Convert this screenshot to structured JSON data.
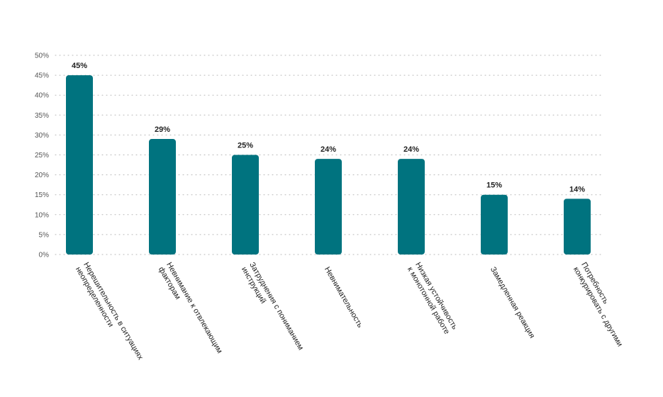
{
  "chart_data": {
    "type": "bar",
    "title": "",
    "xlabel": "",
    "ylabel": "",
    "ylim": [
      0,
      50
    ],
    "yticks": [
      "0%",
      "5%",
      "10%",
      "15%",
      "20%",
      "25%",
      "30%",
      "35%",
      "40%",
      "45%",
      "50%"
    ],
    "ytick_values": [
      0,
      5,
      10,
      15,
      20,
      25,
      30,
      35,
      40,
      45,
      50
    ],
    "grid": true,
    "bar_color": "#00737f",
    "categories": [
      [
        "Нерешительность в ситуациях",
        "неопределенности"
      ],
      [
        "Невнимание к отвлекающим",
        "факторам"
      ],
      [
        "Затруднения с пониманием",
        "инструкций"
      ],
      [
        "Невнимательность"
      ],
      [
        "Низкая устойчивость",
        "к монотонной работе"
      ],
      [
        "Замедленная реакция"
      ],
      [
        "Потребность",
        "конкурировать с другими"
      ]
    ],
    "values": [
      45,
      29,
      25,
      24,
      24,
      15,
      14
    ],
    "data_labels": [
      "45%",
      "29%",
      "25%",
      "24%",
      "24%",
      "15%",
      "14%"
    ]
  }
}
